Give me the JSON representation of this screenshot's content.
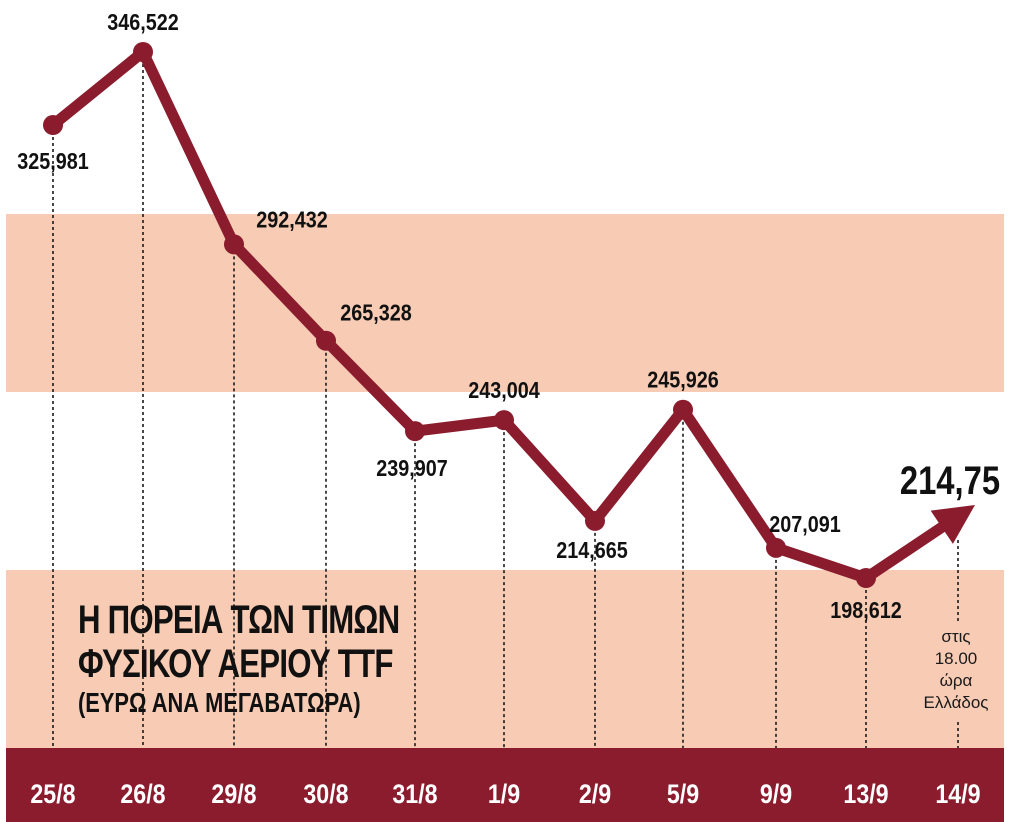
{
  "colors": {
    "band": "#f7cbb4",
    "line": "#8b1c2e",
    "footer": "#8b1c2e",
    "footer_text": "#ffffff",
    "label": "#111111",
    "guide": "#1a1a1a"
  },
  "title": {
    "line1": "Η ΠΟΡΕΙΑ ΤΩΝ ΤΙΜΩΝ",
    "line2": "ΦΥΣΙΚΟΥ ΑΕΡΙΟΥ TTF",
    "line3": "(ΕΥΡΩ ΑΝΑ ΜΕΓΑΒΑΤΩΡΑ)"
  },
  "note": {
    "line1": "στις",
    "line2": "18.00",
    "line3": "ώρα",
    "line4": "Ελλάδος"
  },
  "chart_data": {
    "type": "line",
    "categories": [
      "25/8",
      "26/8",
      "29/8",
      "30/8",
      "31/8",
      "1/9",
      "2/9",
      "5/9",
      "9/9",
      "13/9",
      "14/9"
    ],
    "values": [
      325.981,
      346.522,
      292.432,
      265.328,
      239.907,
      243.004,
      214.665,
      245.926,
      207.091,
      198.612,
      214.75
    ],
    "data_labels": [
      "325,981",
      "346,522",
      "292,432",
      "265,328",
      "239,907",
      "243,004",
      "214,665",
      "245,926",
      "207,091",
      "198,612",
      "214,75"
    ],
    "last_point_arrow": true,
    "grid": false,
    "legend": "none"
  }
}
